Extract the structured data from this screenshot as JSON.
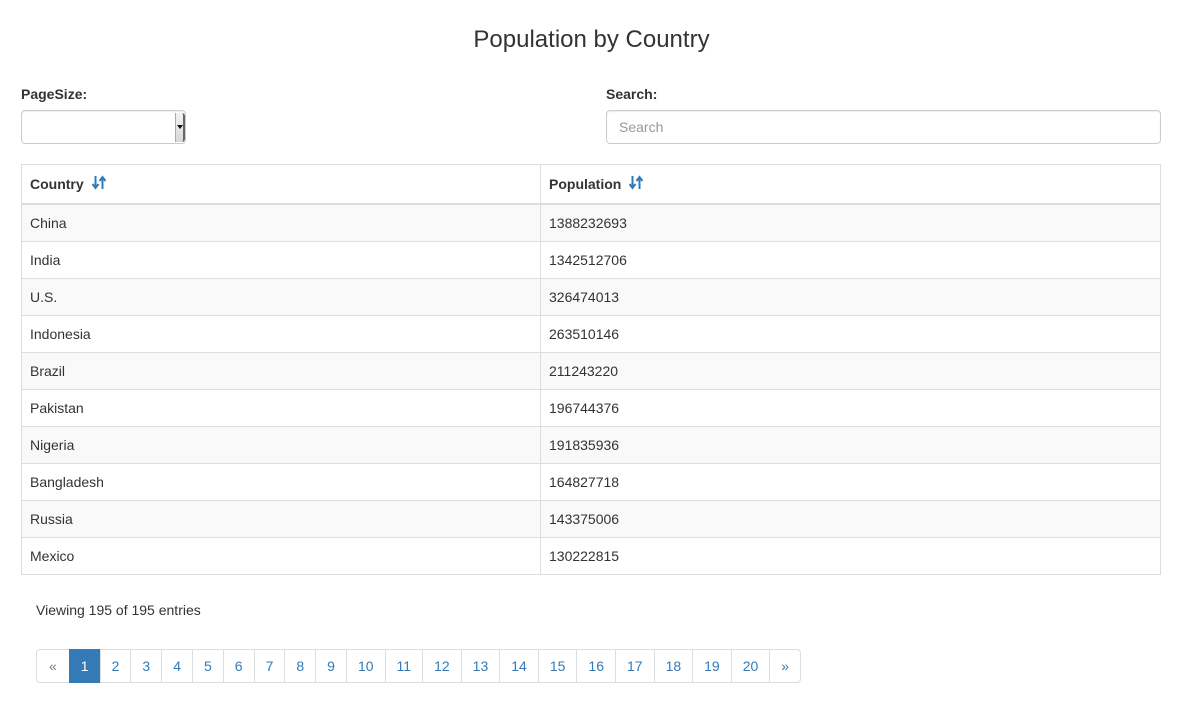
{
  "title": "Population by Country",
  "controls": {
    "pagesize_label": "PageSize:",
    "pagesize_value": "",
    "search_label": "Search:",
    "search_placeholder": "Search",
    "search_value": ""
  },
  "table": {
    "headers": [
      "Country",
      "Population"
    ],
    "sort_icon": "sort-alt-icon",
    "rows": [
      [
        "China",
        "1388232693"
      ],
      [
        "India",
        "1342512706"
      ],
      [
        "U.S.",
        "326474013"
      ],
      [
        "Indonesia",
        "263510146"
      ],
      [
        "Brazil",
        "211243220"
      ],
      [
        "Pakistan",
        "196744376"
      ],
      [
        "Nigeria",
        "191835936"
      ],
      [
        "Bangladesh",
        "164827718"
      ],
      [
        "Russia",
        "143375006"
      ],
      [
        "Mexico",
        "130222815"
      ]
    ]
  },
  "footer": {
    "entries_info": "Viewing 195 of 195 entries"
  },
  "pagination": {
    "prev": "«",
    "next": "»",
    "pages": [
      "1",
      "2",
      "3",
      "4",
      "5",
      "6",
      "7",
      "8",
      "9",
      "10",
      "11",
      "12",
      "13",
      "14",
      "15",
      "16",
      "17",
      "18",
      "19",
      "20"
    ],
    "active": "1"
  },
  "colors": {
    "accent": "#337ab7",
    "stripe": "#f9f9f9",
    "border": "#dddddd"
  }
}
